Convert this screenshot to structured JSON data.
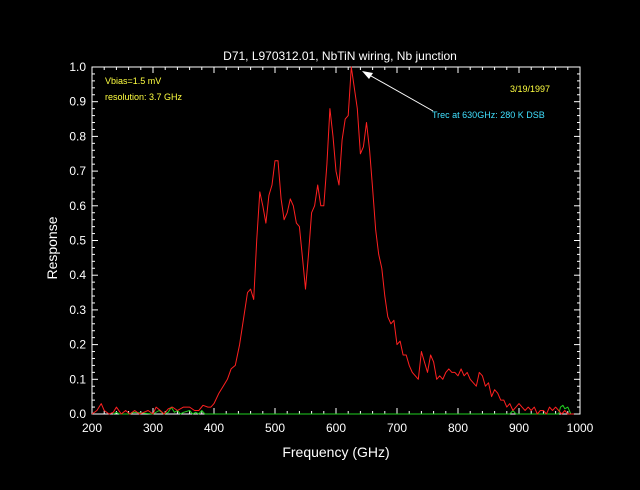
{
  "colors": {
    "background": "#000000",
    "axis": "#ffffff",
    "series_main": "#ff2020",
    "series_secondary": "#20d020",
    "annotation_yellow": "#ffff40",
    "annotation_cyan": "#40e0ff"
  },
  "chart_data": {
    "type": "line",
    "title": "D71, L970312.01, NbTiN wiring, Nb junction",
    "xlabel": "Frequency (GHz)",
    "ylabel": "Response",
    "xlim": [
      200,
      1000
    ],
    "ylim": [
      0,
      1.0
    ],
    "x_ticks": [
      200,
      300,
      400,
      500,
      600,
      700,
      800,
      900,
      1000
    ],
    "x_tick_labels": [
      "200",
      "300",
      "400",
      "500",
      "600",
      "700",
      "800",
      "900",
      "1000"
    ],
    "y_ticks": [
      0,
      0.1,
      0.2,
      0.3,
      0.4,
      0.5,
      0.6,
      0.7,
      0.8,
      0.9,
      1.0
    ],
    "y_tick_labels": [
      "0.0",
      "0.1",
      "0.2",
      "0.3",
      "0.4",
      "0.5",
      "0.6",
      "0.7",
      "0.8",
      "0.9",
      "1.0"
    ],
    "grid": false,
    "series": [
      {
        "name": "response",
        "color": "#ff2020",
        "x": [
          200,
          208,
          215,
          220,
          228,
          235,
          240,
          248,
          255,
          262,
          270,
          278,
          285,
          292,
          300,
          305,
          312,
          318,
          325,
          332,
          340,
          350,
          360,
          368,
          375,
          382,
          390,
          395,
          400,
          408,
          415,
          422,
          428,
          435,
          442,
          448,
          455,
          460,
          465,
          470,
          475,
          480,
          485,
          490,
          495,
          500,
          505,
          510,
          515,
          520,
          525,
          530,
          535,
          540,
          545,
          550,
          555,
          560,
          565,
          570,
          575,
          580,
          585,
          590,
          595,
          600,
          605,
          610,
          615,
          620,
          625,
          630,
          635,
          640,
          645,
          650,
          655,
          660,
          665,
          670,
          675,
          680,
          685,
          690,
          695,
          700,
          705,
          710,
          715,
          720,
          725,
          730,
          735,
          740,
          745,
          750,
          755,
          760,
          765,
          770,
          775,
          780,
          785,
          790,
          795,
          800,
          805,
          810,
          815,
          820,
          825,
          830,
          835,
          840,
          845,
          850,
          855,
          860,
          865,
          870,
          875,
          880,
          885,
          890,
          895,
          900,
          905,
          910,
          915,
          920,
          925,
          930,
          935,
          940,
          945,
          950,
          955,
          960,
          965,
          970,
          975,
          980,
          985,
          990
        ],
        "y": [
          0.0,
          0.01,
          0.03,
          0.01,
          0.0,
          0.005,
          0.02,
          0.0,
          0.01,
          0.0,
          0.01,
          0.0,
          0.005,
          0.01,
          0.0,
          0.02,
          0.01,
          0.0,
          0.015,
          0.02,
          0.01,
          0.02,
          0.02,
          0.01,
          0.01,
          0.025,
          0.02,
          0.02,
          0.03,
          0.06,
          0.08,
          0.1,
          0.13,
          0.14,
          0.2,
          0.27,
          0.35,
          0.36,
          0.33,
          0.5,
          0.64,
          0.6,
          0.55,
          0.63,
          0.66,
          0.73,
          0.73,
          0.62,
          0.56,
          0.58,
          0.62,
          0.6,
          0.55,
          0.54,
          0.45,
          0.36,
          0.46,
          0.58,
          0.6,
          0.66,
          0.6,
          0.6,
          0.72,
          0.88,
          0.8,
          0.7,
          0.66,
          0.79,
          0.85,
          0.86,
          1.0,
          0.94,
          0.88,
          0.75,
          0.77,
          0.84,
          0.76,
          0.65,
          0.53,
          0.46,
          0.42,
          0.34,
          0.28,
          0.26,
          0.27,
          0.2,
          0.21,
          0.17,
          0.17,
          0.14,
          0.12,
          0.11,
          0.1,
          0.18,
          0.15,
          0.12,
          0.17,
          0.15,
          0.1,
          0.11,
          0.1,
          0.12,
          0.13,
          0.12,
          0.12,
          0.11,
          0.13,
          0.11,
          0.12,
          0.1,
          0.09,
          0.08,
          0.12,
          0.11,
          0.08,
          0.09,
          0.05,
          0.07,
          0.06,
          0.04,
          0.04,
          0.02,
          0.03,
          0.01,
          0.02,
          0.03,
          0.02,
          0.01,
          0.02,
          0.01,
          0.02,
          0.0,
          0.01,
          0.01,
          0.0,
          0.02,
          0.01,
          0.02,
          0.01,
          0.0,
          0.01,
          0.0,
          0.0,
          0.0
        ]
      },
      {
        "name": "secondary",
        "color": "#20d020",
        "x": [
          235,
          240,
          245,
          250,
          262,
          268,
          300,
          310,
          318,
          325,
          330,
          335,
          340,
          345,
          350,
          360,
          365,
          370,
          375,
          380,
          385,
          885,
          890,
          895,
          965,
          968,
          972,
          975,
          980,
          985
        ],
        "y": [
          0.0,
          0.005,
          0.0,
          0.0,
          0.0,
          0.005,
          0.0,
          0.01,
          0.0,
          0.005,
          0.02,
          0.005,
          0.01,
          0.0,
          0.005,
          0.01,
          0.0,
          0.005,
          0.0,
          0.01,
          0.0,
          0.0,
          0.01,
          0.0,
          0.0,
          0.02,
          0.025,
          0.015,
          0.02,
          0.0
        ]
      }
    ],
    "annotations": [
      {
        "text": "Vbias=1.5 mV",
        "color": "#ffff40"
      },
      {
        "text": "resolution: 3.7 GHz",
        "color": "#ffff40"
      },
      {
        "text": "3/19/1997",
        "color": "#ffff40"
      },
      {
        "text": "Trec at 630GHz: 280 K DSB",
        "color": "#40e0ff",
        "arrow_to": [
          630,
          1.0
        ]
      }
    ]
  }
}
